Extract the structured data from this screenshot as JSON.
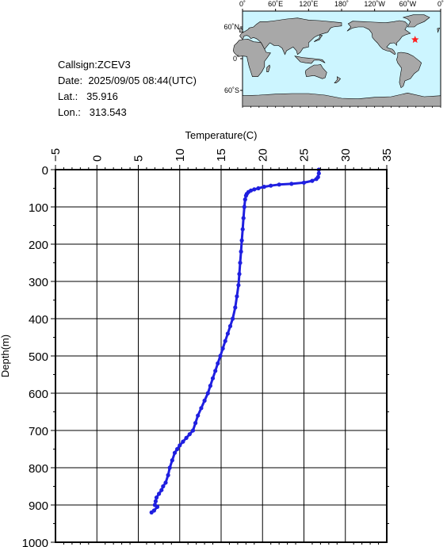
{
  "info": {
    "callsign_label": "Callsign:",
    "callsign": "ZCEV3",
    "date_label": "Date:",
    "date": "2025/09/05 08:44(UTC)",
    "lat_label": "Lat.:",
    "lat": "35.916",
    "lon_label": "Lon.:",
    "lon": "313.543"
  },
  "map": {
    "lon_labels": [
      "0˚",
      "60˚E",
      "120˚E",
      "180˚",
      "120˚W",
      "60˚W",
      "0˚"
    ],
    "lat_labels": [
      "60˚N",
      "0˚",
      "60˚S"
    ],
    "ocean_color": "#ccf5ff",
    "land_color": "#a8a8a8",
    "marker_color": "#ff2020",
    "marker_icon": "star-icon",
    "marker": {
      "lon": 313.543,
      "lat": 35.916
    }
  },
  "chart_data": {
    "type": "line",
    "xlabel": "Temperature(C)",
    "ylabel": "Depth(m)",
    "xlim": [
      -5,
      35
    ],
    "ylim": [
      1000,
      0
    ],
    "x_ticks": [
      -5,
      0,
      5,
      10,
      15,
      20,
      25,
      30,
      35
    ],
    "x_tick_labels": [
      "−5",
      "0",
      "5",
      "10",
      "15",
      "20",
      "25",
      "30",
      "35"
    ],
    "y_ticks": [
      0,
      100,
      200,
      300,
      400,
      500,
      600,
      700,
      800,
      900,
      1000
    ],
    "y_tick_labels": [
      "0",
      "100",
      "200",
      "300",
      "400",
      "500",
      "600",
      "700",
      "800",
      "900",
      "1000"
    ],
    "grid": true,
    "series_color": "#1f1fe0",
    "series": [
      {
        "x": [
          26.8,
          26.8,
          26.7,
          26.5,
          26.0,
          25.0,
          23.5,
          22.0,
          21.0,
          20.2,
          19.5,
          19.0,
          18.6,
          18.3,
          18.1,
          18.0,
          17.9,
          17.8,
          17.7,
          17.6,
          17.5,
          17.4,
          17.3,
          17.2,
          17.1,
          16.9,
          16.7,
          16.4,
          16.1,
          15.8,
          15.5,
          15.2,
          14.9,
          14.6,
          14.3,
          14.0,
          13.7,
          13.4,
          13.0,
          12.6,
          12.2,
          11.9,
          11.6,
          11.2,
          10.8,
          10.4,
          10.0,
          9.7,
          9.4,
          9.1,
          8.8,
          8.6,
          8.3,
          8.0,
          7.8,
          7.5,
          7.2,
          7.1,
          7.0,
          7.3,
          6.9,
          6.6
        ],
        "y": [
          0,
          10,
          20,
          25,
          30,
          35,
          38,
          40,
          43,
          46,
          50,
          53,
          56,
          60,
          65,
          70,
          80,
          100,
          130,
          160,
          190,
          220,
          250,
          280,
          310,
          340,
          370,
          400,
          420,
          440,
          460,
          480,
          500,
          520,
          540,
          560,
          580,
          600,
          620,
          640,
          660,
          680,
          700,
          710,
          720,
          730,
          740,
          750,
          760,
          780,
          800,
          820,
          840,
          850,
          860,
          870,
          880,
          890,
          900,
          905,
          915,
          920
        ]
      }
    ]
  }
}
